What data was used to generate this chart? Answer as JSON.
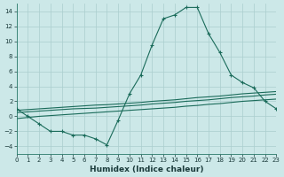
{
  "xlabel": "Humidex (Indice chaleur)",
  "background_color": "#cce8e8",
  "grid_color": "#aacece",
  "line_color": "#1a6b5a",
  "x_data": [
    0,
    1,
    2,
    3,
    4,
    5,
    6,
    7,
    8,
    9,
    10,
    11,
    12,
    13,
    14,
    15,
    16,
    17,
    18,
    19,
    20,
    21,
    22,
    23
  ],
  "main_line": [
    1,
    0,
    -1,
    -2,
    -2,
    -2.5,
    -2.5,
    -3,
    -3.8,
    -0.5,
    3,
    5.5,
    9.5,
    13,
    13.5,
    14.5,
    14.5,
    11,
    8.5,
    5.5,
    4.5,
    3.8,
    2,
    1
  ],
  "line2": [
    0.8,
    0.9,
    1.0,
    1.1,
    1.2,
    1.3,
    1.4,
    1.5,
    1.55,
    1.65,
    1.75,
    1.85,
    2.0,
    2.1,
    2.2,
    2.35,
    2.5,
    2.6,
    2.7,
    2.85,
    3.0,
    3.1,
    3.2,
    3.3
  ],
  "line3": [
    0.5,
    0.6,
    0.7,
    0.8,
    0.9,
    1.0,
    1.05,
    1.1,
    1.2,
    1.3,
    1.4,
    1.5,
    1.65,
    1.75,
    1.85,
    2.0,
    2.1,
    2.2,
    2.35,
    2.5,
    2.6,
    2.7,
    2.85,
    2.95
  ],
  "line4": [
    -0.3,
    -0.15,
    0.0,
    0.1,
    0.2,
    0.3,
    0.4,
    0.5,
    0.6,
    0.7,
    0.8,
    0.9,
    1.0,
    1.1,
    1.2,
    1.35,
    1.45,
    1.6,
    1.7,
    1.85,
    2.0,
    2.1,
    2.2,
    2.3
  ],
  "ylim": [
    -5,
    15
  ],
  "xlim": [
    0,
    23
  ],
  "yticks": [
    -4,
    -2,
    0,
    2,
    4,
    6,
    8,
    10,
    12,
    14
  ],
  "xticks": [
    0,
    1,
    2,
    3,
    4,
    5,
    6,
    7,
    8,
    9,
    10,
    11,
    12,
    13,
    14,
    15,
    16,
    17,
    18,
    19,
    20,
    21,
    22,
    23
  ]
}
